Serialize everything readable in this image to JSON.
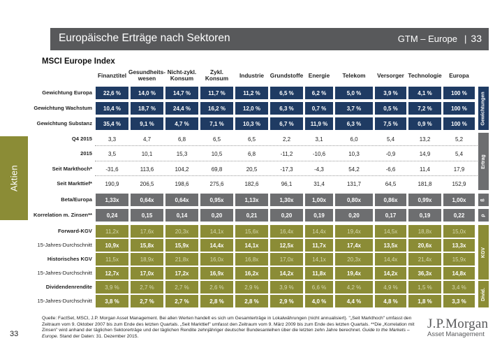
{
  "header": {
    "title": "Europäische Erträge nach Sektoren",
    "gtm": "GTM – Europe",
    "separator": "|",
    "page": "33"
  },
  "side_tab": {
    "label": "Aktien"
  },
  "table": {
    "title": "MSCI Europe Index",
    "columns": [
      "Finanztitel",
      "Gesundheits-\nwesen",
      "Nicht-zykl.\nKonsum",
      "Zykl.\nKonsum",
      "Industrie",
      "Grundstoffe",
      "Energie",
      "Telekom",
      "Versorger",
      "Technologie",
      "Europa"
    ],
    "rows": [
      {
        "label": "Gewichtung Europa",
        "values": [
          "22,6 %",
          "14,0 %",
          "14,7 %",
          "11,7 %",
          "11,2 %",
          "6,5 %",
          "6,2 %",
          "5,0 %",
          "3,9 %",
          "4,1 %",
          "100 %"
        ]
      },
      {
        "label": "Gewichtung Wachstum",
        "values": [
          "10,4 %",
          "18,7 %",
          "24,4 %",
          "16,2 %",
          "12,0 %",
          "6,3 %",
          "0,7 %",
          "3,7 %",
          "0,5 %",
          "7,2 %",
          "100 %"
        ]
      },
      {
        "label": "Gewichtung Substanz",
        "values": [
          "35,4 %",
          "9,1 %",
          "4,7 %",
          "7,1 %",
          "10,3 %",
          "6,7 %",
          "11,9 %",
          "6,3 %",
          "7,5 %",
          "0,9 %",
          "100 %"
        ]
      },
      {
        "label": "Q4 2015",
        "values": [
          "3,3",
          "4,7",
          "6,8",
          "6,5",
          "6,5",
          "2,2",
          "3,1",
          "6,0",
          "5,4",
          "13,2",
          "5,2"
        ]
      },
      {
        "label": "2015",
        "values": [
          "3,5",
          "10,1",
          "15,3",
          "10,5",
          "6,8",
          "-11,2",
          "-10,6",
          "10,3",
          "-0,9",
          "14,9",
          "5,4"
        ]
      },
      {
        "label": "Seit Markthoch*",
        "values": [
          "-31,6",
          "113,6",
          "104,2",
          "69,8",
          "20,5",
          "-17,3",
          "-4,3",
          "54,2",
          "-6,6",
          "11,4",
          "17,9"
        ]
      },
      {
        "label": "Seit Markttief*",
        "values": [
          "190,9",
          "206,5",
          "198,6",
          "275,6",
          "182,6",
          "96,1",
          "31,4",
          "131,7",
          "64,5",
          "181,8",
          "152,9"
        ]
      },
      {
        "label": "Beta/Europa",
        "values": [
          "1,33x",
          "0,64x",
          "0,64x",
          "0,95x",
          "1,13x",
          "1,30x",
          "1,00x",
          "0,80x",
          "0,86x",
          "0,99x",
          "1,00x"
        ]
      },
      {
        "label": "Korrelation m. Zinsen**",
        "values": [
          "0,24",
          "0,15",
          "0,14",
          "0,20",
          "0,21",
          "0,20",
          "0,19",
          "0,20",
          "0,17",
          "0,19",
          "0,22"
        ]
      },
      {
        "label": "Forward-KGV",
        "values": [
          "11,2x",
          "17,6x",
          "20,3x",
          "14,1x",
          "15,6x",
          "16,4x",
          "14,4x",
          "19,4x",
          "14,5x",
          "18,8x",
          "15,0x"
        ]
      },
      {
        "label": "15-Jahres-Durchschnitt",
        "values": [
          "10,9x",
          "15,8x",
          "15,9x",
          "14,4x",
          "14,1x",
          "12,5x",
          "11,7x",
          "17,4x",
          "13,5x",
          "20,6x",
          "13,3x"
        ]
      },
      {
        "label": "Historisches KGV",
        "values": [
          "11,5x",
          "18,9x",
          "21,8x",
          "16,0x",
          "16,8x",
          "17,0x",
          "14,1x",
          "20,3x",
          "14,4x",
          "21,4x",
          "15,9x"
        ]
      },
      {
        "label": "15-Jahres-Durchschnitt",
        "values": [
          "12,7x",
          "17,0x",
          "17,2x",
          "16,9x",
          "16,2x",
          "14,2x",
          "11,8x",
          "19,4x",
          "14,2x",
          "36,3x",
          "14,8x"
        ]
      },
      {
        "label": "Dividendenrendite",
        "values": [
          "3,9 %",
          "2,7 %",
          "2,7 %",
          "2,6 %",
          "2,9 %",
          "3,9 %",
          "6,6 %",
          "4,2 %",
          "4,9 %",
          "1,5 %",
          "3,4 %"
        ]
      },
      {
        "label": "15-Jahres-Durchschnitt",
        "values": [
          "3,8 %",
          "2,7 %",
          "2,7 %",
          "2,8 %",
          "2,8 %",
          "2,9 %",
          "4,0 %",
          "4,4 %",
          "4,8 %",
          "1,8 %",
          "3,3 %"
        ]
      }
    ],
    "sections": [
      "Gewichtungen",
      "Ertrag",
      "ß",
      "ρ",
      "KGV",
      "Divid."
    ]
  },
  "footnote": {
    "text": "Quelle: FactSet, MSCI, J.P. Morgan Asset Management. Bei allen Werten handelt es sich um Gesamterträge in Lokalwährungen (nicht annualisiert). \"„Seit Markthoch\" umfasst den Zeitraum vom 9. Oktober 2007 bis zum Ende des letzten Quartals. „Seit Markttief\" umfasst den Zeitraum vom 9. März 2009 bis zum Ende des letzten Quartals. **Die „Korrelation mit Zinsen\" wird anhand der täglichen Sektorerträge und der täglichen Rendite zehnjähriger deutscher Bundesanleihen über die letzten zehn Jahre berechnet.",
    "guide": "Guide to the Markets – Europe.",
    "date": "Stand der Daten: 31. Dezember 2015."
  },
  "page_number": "33",
  "logo": {
    "name": "J.P.Morgan",
    "sub": "Asset Management"
  },
  "colors": {
    "navy": "#1f3b63",
    "gray": "#6d6e70",
    "olive": "#8b8c36",
    "header": "#58595b"
  }
}
